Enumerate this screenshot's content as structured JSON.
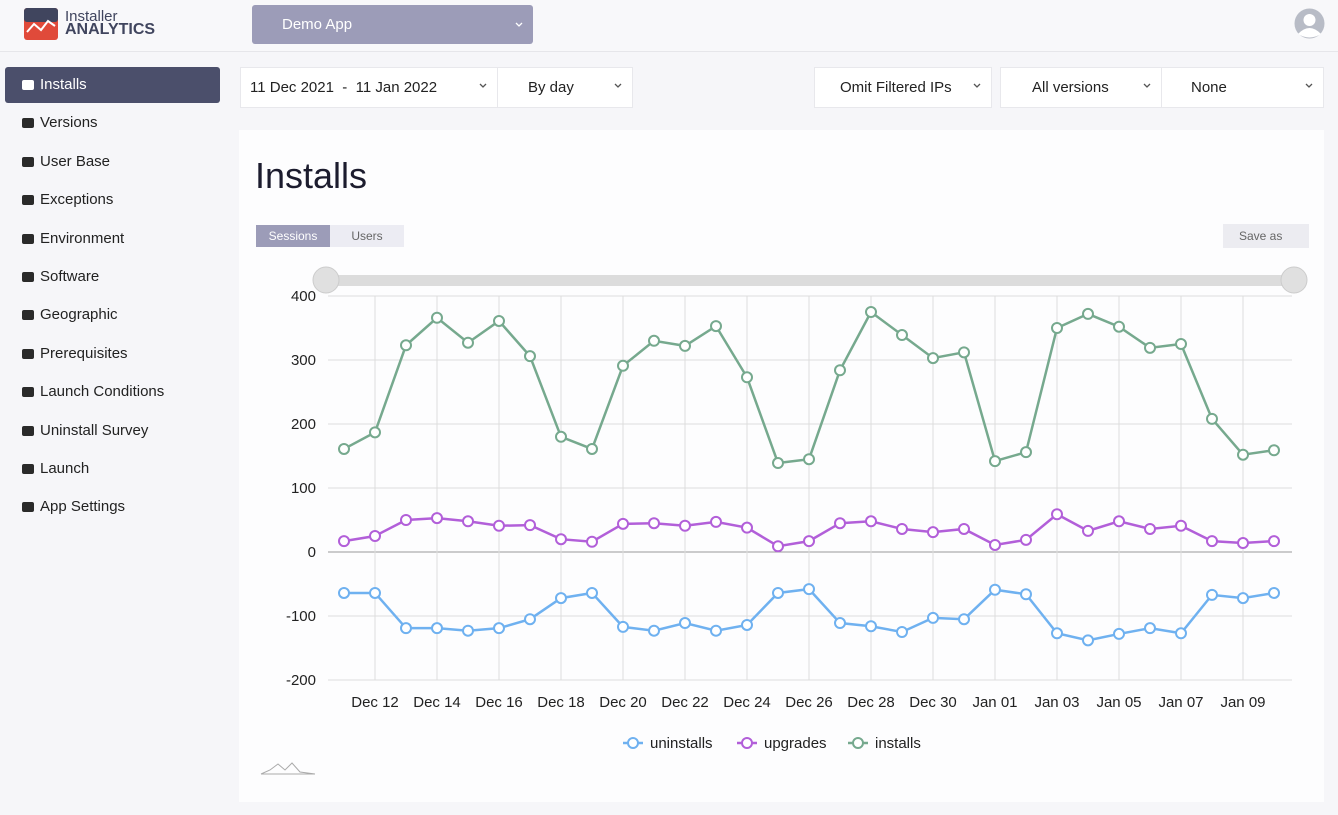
{
  "logo": {
    "line1": "Installer",
    "line2": "ANALYTICS"
  },
  "app_selector": "Demo App",
  "sidebar": {
    "items": [
      "Installs",
      "Versions",
      "User Base",
      "Exceptions",
      "Environment",
      "Software",
      "Geographic",
      "Prerequisites",
      "Launch Conditions",
      "Uninstall Survey",
      "Launch",
      "App Settings"
    ],
    "active": 0
  },
  "filters": {
    "date_range": "11 Dec 2021  -  11 Jan 2022",
    "grouping": "By day",
    "ip_filter": "Omit Filtered IPs",
    "versions": "All versions",
    "folder": "None"
  },
  "panel": {
    "title": "Installs",
    "tabs": [
      "Sessions",
      "Users"
    ],
    "save": "Save as"
  },
  "chart_data": {
    "type": "line",
    "categories": [
      null,
      "Dec 12",
      null,
      "Dec 14",
      null,
      "Dec 16",
      null,
      "Dec 18",
      null,
      "Dec 20",
      null,
      "Dec 22",
      null,
      "Dec 24",
      null,
      "Dec 26",
      null,
      "Dec 28",
      null,
      "Dec 30",
      null,
      "Jan 01",
      null,
      "Jan 03",
      null,
      "Jan 05",
      null,
      "Jan 07",
      null,
      "Jan 09",
      null
    ],
    "ylim": [
      -200,
      400
    ],
    "yticks": [
      -200,
      -100,
      0,
      100,
      200,
      300,
      400
    ],
    "grid": true,
    "series": [
      {
        "name": "uninstalls",
        "color": "#6fb1f0",
        "values": [
          -64,
          -64,
          -119,
          -119,
          -123,
          -119,
          -105,
          -72,
          -64,
          -117,
          -123,
          -111,
          -123,
          -114,
          -64,
          -58,
          -111,
          -116,
          -125,
          -103,
          -105,
          -59,
          -66,
          -127,
          -138,
          -128,
          -119,
          -127,
          -67,
          -72,
          -64
        ]
      },
      {
        "name": "upgrades",
        "color": "#b25fd9",
        "values": [
          17,
          25,
          50,
          53,
          48,
          41,
          42,
          20,
          16,
          44,
          45,
          41,
          47,
          38,
          9,
          17,
          45,
          48,
          36,
          31,
          36,
          11,
          19,
          59,
          33,
          48,
          36,
          41,
          17,
          14,
          17
        ]
      },
      {
        "name": "installs",
        "color": "#76a98e",
        "values": [
          161,
          187,
          323,
          366,
          327,
          361,
          306,
          180,
          161,
          291,
          330,
          322,
          353,
          273,
          139,
          145,
          284,
          375,
          339,
          303,
          312,
          142,
          156,
          350,
          372,
          352,
          319,
          325,
          208,
          152,
          159
        ]
      }
    ]
  }
}
